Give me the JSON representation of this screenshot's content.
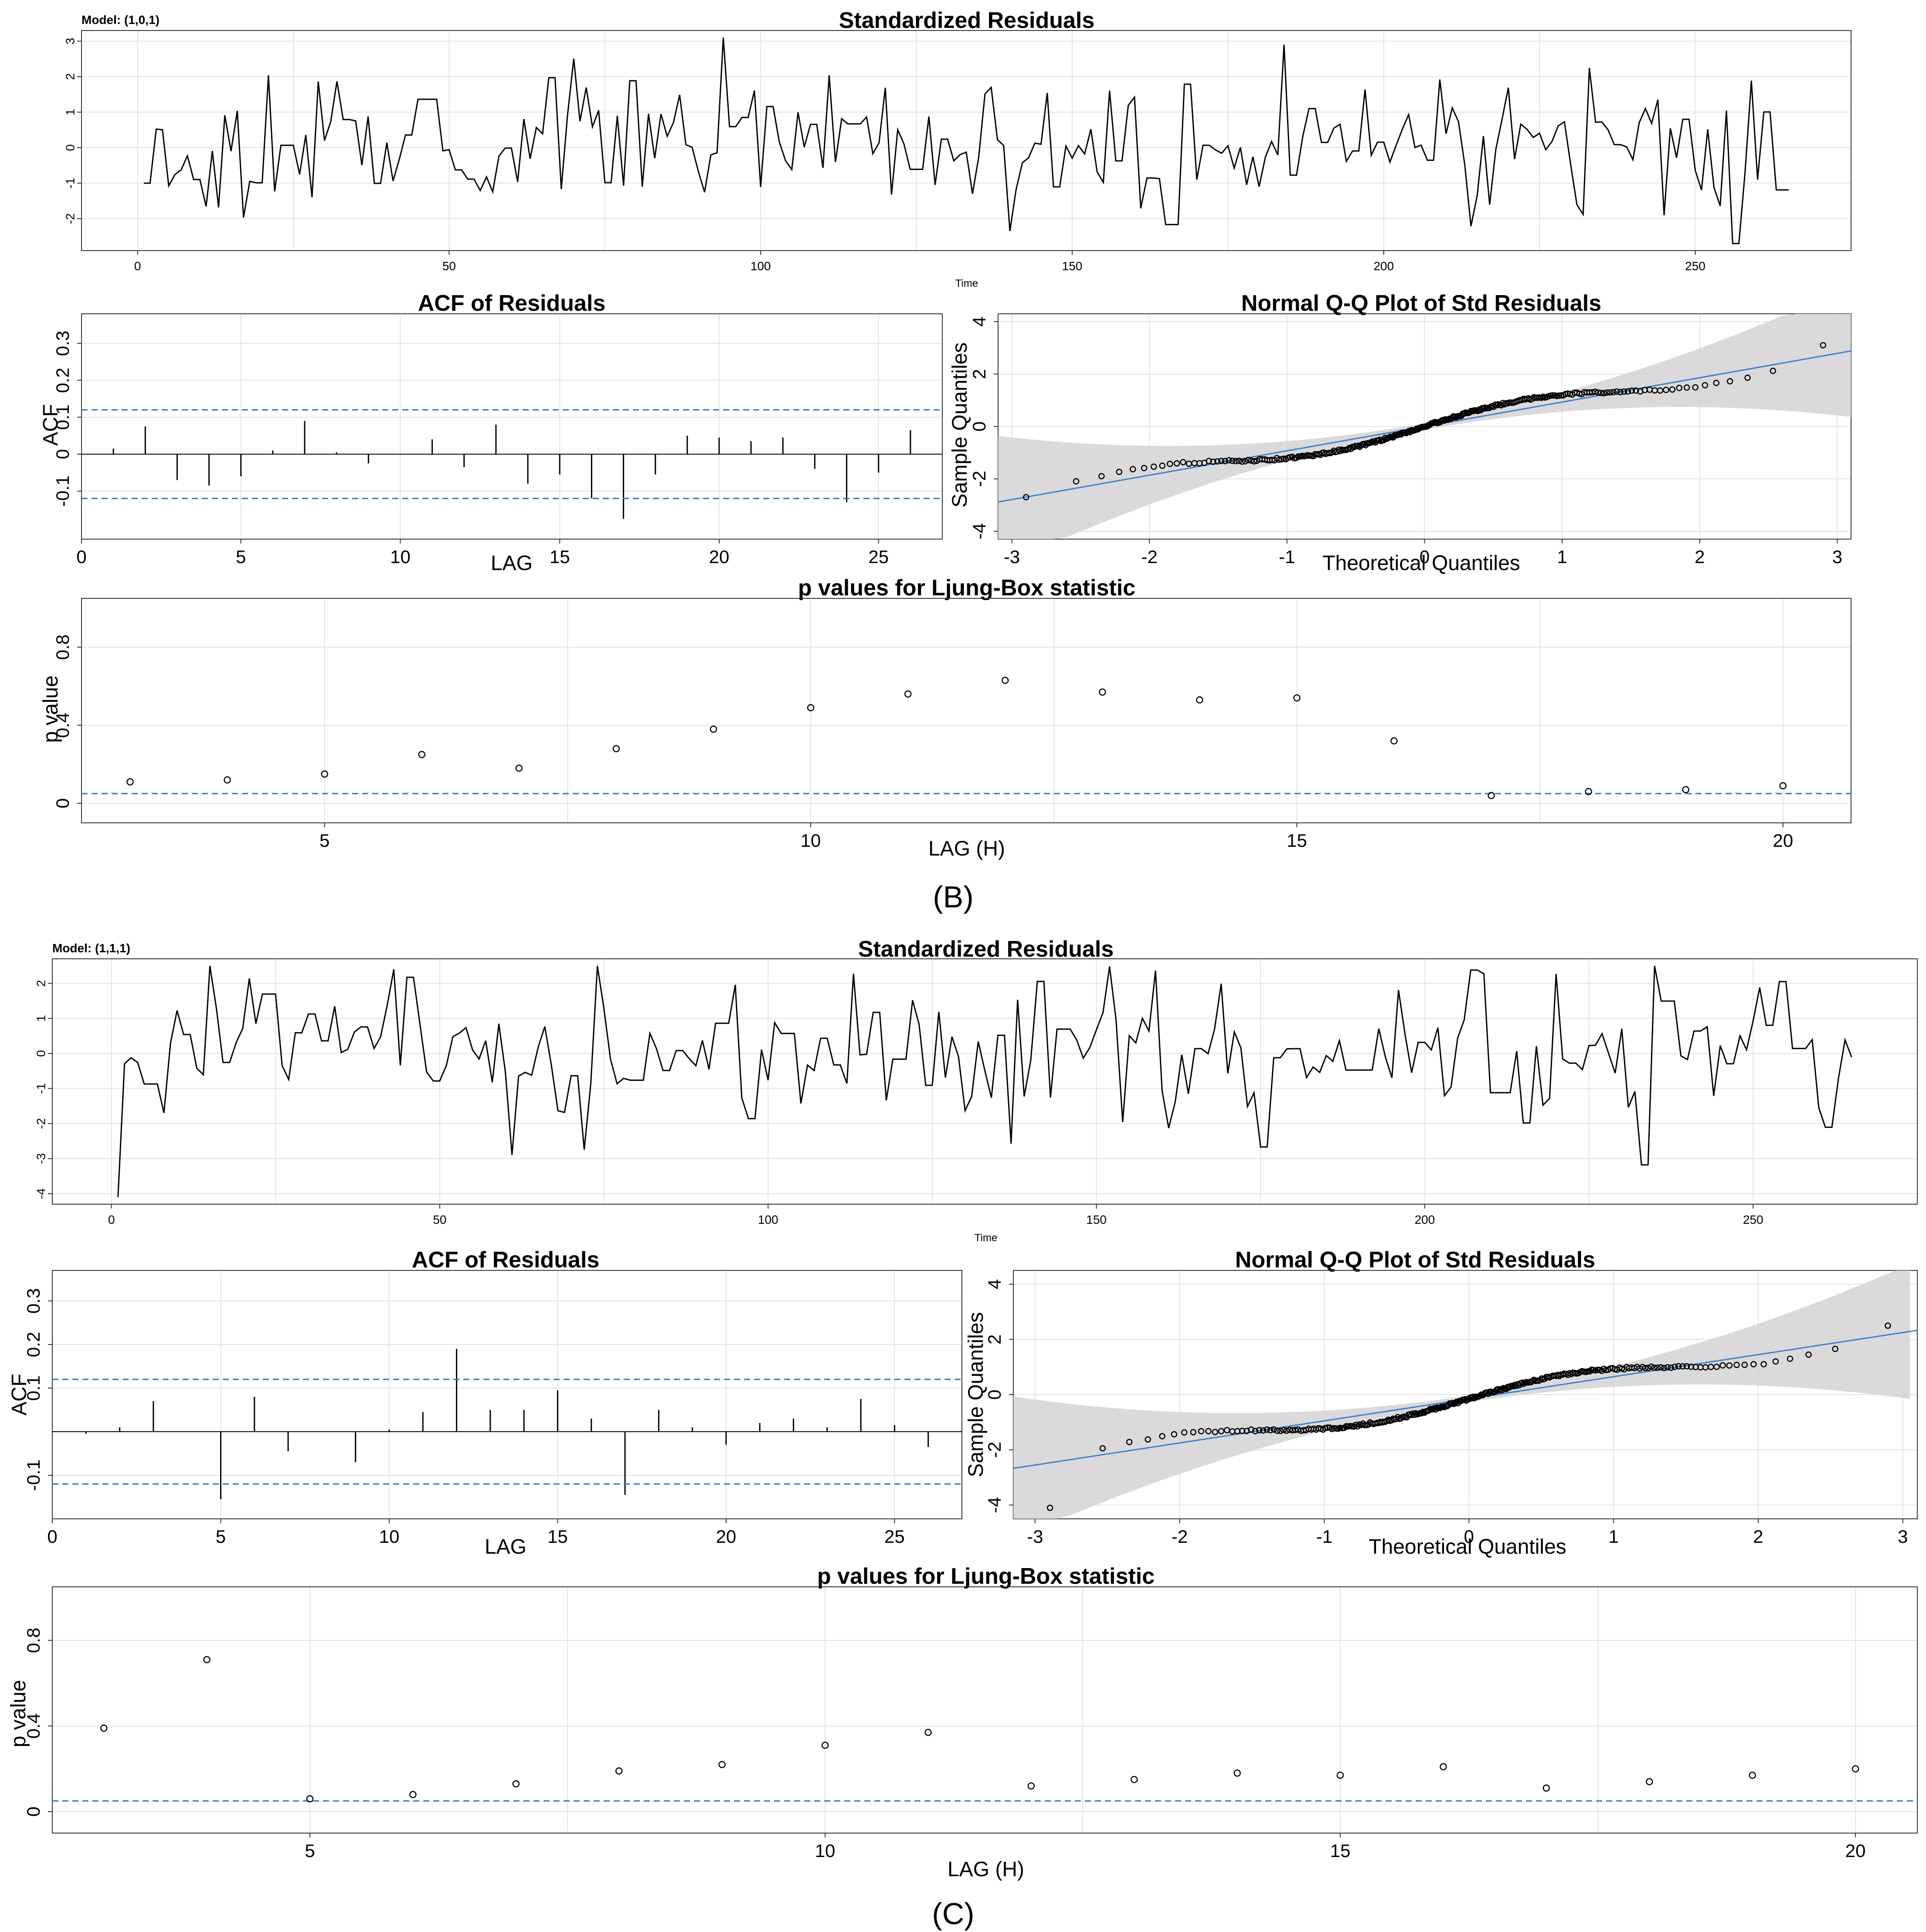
{
  "panels": [
    {
      "id": "B",
      "label": "(B)",
      "model": "Model: (1,0,1)",
      "seed": 11,
      "resid": {
        "title": "Standardized Residuals",
        "xlabel": "Time",
        "xlim": [
          -9,
          275
        ],
        "ylim": [
          -2.9,
          3.3
        ],
        "xticks": [
          0,
          50,
          100,
          150,
          200,
          250
        ],
        "yticks": [
          -2,
          -1,
          0,
          1,
          2,
          3
        ],
        "n": 265
      },
      "acf": {
        "title": "ACF of Residuals",
        "xlabel": "LAG",
        "ylabel": "ACF",
        "xlim": [
          0,
          27
        ],
        "ylim": [
          -0.23,
          0.38
        ],
        "xticks": [
          0,
          5,
          10,
          15,
          20,
          25
        ],
        "yticks": [
          -0.1,
          0.0,
          0.1,
          0.2,
          0.3
        ],
        "ci": 0.12
      },
      "qq": {
        "title": "Normal Q-Q Plot of Std Residuals",
        "xlabel": "Theoretical Quantiles",
        "ylabel": "Sample Quantiles",
        "xlim": [
          -3.1,
          3.1
        ],
        "ylim": [
          -4.3,
          4.3
        ],
        "xticks": [
          -3,
          -2,
          -1,
          0,
          1,
          2,
          3
        ],
        "yticks": [
          -4,
          -2,
          0,
          2,
          4
        ],
        "line": {
          "intercept": 0.0,
          "slope": 0.93
        }
      },
      "lb": {
        "title": "p values for Ljung-Box statistic",
        "xlabel": "LAG (H)",
        "ylabel": "p value",
        "xlim": [
          2.5,
          20.7
        ],
        "ylim": [
          -0.1,
          1.05
        ],
        "xticks": [
          5,
          10,
          15,
          20
        ],
        "yticks": [
          0.0,
          0.4,
          0.8
        ],
        "ci": 0.05
      }
    },
    {
      "id": "C",
      "label": "(C)",
      "model": "Model: (1,1,1)",
      "seed": 29,
      "resid": {
        "title": "Standardized Residuals",
        "xlabel": "Time",
        "xlim": [
          -9,
          275
        ],
        "ylim": [
          -4.3,
          2.7
        ],
        "xticks": [
          0,
          50,
          100,
          150,
          200,
          250
        ],
        "yticks": [
          -4,
          -3,
          -2,
          -1,
          0,
          1,
          2
        ],
        "n": 265
      },
      "acf": {
        "title": "ACF of Residuals",
        "xlabel": "LAG",
        "ylabel": "ACF",
        "xlim": [
          0,
          27
        ],
        "ylim": [
          -0.2,
          0.37
        ],
        "xticks": [
          0,
          5,
          10,
          15,
          20,
          25
        ],
        "yticks": [
          -0.1,
          0.1,
          0.2,
          0.3
        ],
        "ci": 0.12
      },
      "qq": {
        "title": "Normal Q-Q Plot of Std Residuals",
        "xlabel": "Theoretical Quantiles",
        "ylabel": "Sample Quantiles",
        "xlim": [
          -3.15,
          3.1
        ],
        "ylim": [
          -4.5,
          4.5
        ],
        "xticks": [
          -3,
          -2,
          -1,
          0,
          1,
          2,
          3
        ],
        "yticks": [
          -4,
          -2,
          0,
          2,
          4
        ],
        "line": {
          "intercept": -0.15,
          "slope": 0.8
        }
      },
      "lb": {
        "title": "p values for Ljung-Box statistic",
        "xlabel": "LAG (H)",
        "ylabel": "p value",
        "xlim": [
          2.5,
          20.6
        ],
        "ylim": [
          -0.1,
          1.05
        ],
        "xticks": [
          5,
          10,
          15,
          20
        ],
        "yticks": [
          0.0,
          0.4,
          0.8
        ],
        "ci": 0.05
      }
    }
  ],
  "chart_data": [
    {
      "type": "line",
      "title": "Standardized Residuals",
      "subtitle": "Model: (1,0,1)",
      "xlabel": "Time",
      "ylabel": "",
      "xlim": [
        -9,
        275
      ],
      "ylim": [
        -2.9,
        3.3
      ],
      "series": [
        {
          "name": "standardized residuals",
          "x": [
            1,
            265
          ],
          "values": "approximately 265 residual values oscillating between -2.7 and 3.1 (min near t=256, max near t=94)"
        }
      ]
    },
    {
      "type": "bar",
      "title": "ACF of Residuals",
      "subtitle": "Model: (1,0,1)",
      "xlabel": "LAG",
      "ylabel": "ACF",
      "ylim": [
        -0.23,
        0.38
      ],
      "categories": [
        1,
        2,
        3,
        4,
        5,
        6,
        7,
        8,
        9,
        10,
        11,
        12,
        13,
        14,
        15,
        16,
        17,
        18,
        19,
        20,
        21,
        22,
        23,
        24,
        25,
        26
      ],
      "values": [
        0.015,
        0.075,
        -0.07,
        -0.085,
        -0.06,
        0.01,
        0.09,
        0.005,
        -0.025,
        0.0,
        0.04,
        -0.035,
        0.08,
        -0.08,
        -0.055,
        -0.12,
        -0.175,
        -0.055,
        0.05,
        0.045,
        0.035,
        0.045,
        -0.04,
        -0.13,
        -0.05,
        0.065
      ],
      "confidence_band": [
        -0.12,
        0.12
      ]
    },
    {
      "type": "scatter",
      "title": "Normal Q-Q Plot of Std Residuals",
      "subtitle": "Model: (1,0,1)",
      "xlabel": "Theoretical Quantiles",
      "ylabel": "Sample Quantiles",
      "xlim": [
        -3.1,
        3.1
      ],
      "ylim": [
        -4.3,
        4.3
      ],
      "reference_line": {
        "intercept": 0.0,
        "slope": 0.93
      },
      "extremes": {
        "min": [
          -2.9,
          -2.7
        ],
        "max": [
          2.9,
          3.1
        ]
      }
    },
    {
      "type": "scatter",
      "title": "p values for Ljung-Box statistic",
      "subtitle": "Model: (1,0,1)",
      "xlabel": "LAG (H)",
      "ylabel": "p value",
      "ylim": [
        -0.1,
        1.05
      ],
      "x": [
        3,
        4,
        5,
        6,
        7,
        8,
        9,
        10,
        11,
        12,
        13,
        14,
        15,
        16,
        17,
        18,
        19,
        20
      ],
      "values": [
        0.11,
        0.12,
        0.15,
        0.25,
        0.18,
        0.28,
        0.38,
        0.49,
        0.56,
        0.63,
        0.57,
        0.53,
        0.54,
        0.32,
        0.04,
        0.06,
        0.07,
        0.09
      ],
      "reference_line": 0.05
    },
    {
      "type": "line",
      "title": "Standardized Residuals",
      "subtitle": "Model: (1,1,1)",
      "xlabel": "Time",
      "ylabel": "",
      "xlim": [
        -9,
        275
      ],
      "ylim": [
        -4.3,
        2.7
      ],
      "series": [
        {
          "name": "standardized residuals",
          "x": [
            1,
            265
          ],
          "values": "approximately 265 residual values between -4.1 (t=1) and 2.4 (t=43)"
        }
      ]
    },
    {
      "type": "bar",
      "title": "ACF of Residuals",
      "subtitle": "Model: (1,1,1)",
      "xlabel": "LAG",
      "ylabel": "ACF",
      "ylim": [
        -0.2,
        0.37
      ],
      "categories": [
        1,
        2,
        3,
        4,
        5,
        6,
        7,
        8,
        9,
        10,
        11,
        12,
        13,
        14,
        15,
        16,
        17,
        18,
        19,
        20,
        21,
        22,
        23,
        24,
        25,
        26
      ],
      "values": [
        -0.005,
        0.01,
        0.07,
        0.0,
        -0.155,
        0.08,
        -0.045,
        0.0,
        -0.07,
        0.005,
        0.045,
        0.19,
        0.05,
        0.05,
        0.095,
        0.03,
        -0.145,
        0.05,
        0.01,
        -0.03,
        0.02,
        0.03,
        0.01,
        0.075,
        0.015,
        -0.035
      ],
      "confidence_band": [
        -0.12,
        0.12
      ]
    },
    {
      "type": "scatter",
      "title": "Normal Q-Q Plot of Std Residuals",
      "subtitle": "Model: (1,1,1)",
      "xlabel": "Theoretical Quantiles",
      "ylabel": "Sample Quantiles",
      "xlim": [
        -3.15,
        3.1
      ],
      "ylim": [
        -4.5,
        4.5
      ],
      "reference_line": {
        "intercept": -0.15,
        "slope": 0.8
      },
      "extremes": {
        "min": [
          -2.85,
          -4.1
        ],
        "max": [
          2.9,
          2.5
        ]
      }
    },
    {
      "type": "scatter",
      "title": "p values for Ljung-Box statistic",
      "subtitle": "Model: (1,1,1)",
      "xlabel": "LAG (H)",
      "ylabel": "p value",
      "ylim": [
        -0.1,
        1.05
      ],
      "x": [
        3,
        4,
        5,
        6,
        7,
        8,
        9,
        10,
        11,
        12,
        13,
        14,
        15,
        16,
        17,
        18,
        19,
        20
      ],
      "values": [
        0.39,
        0.71,
        0.06,
        0.08,
        0.13,
        0.19,
        0.22,
        0.31,
        0.37,
        0.12,
        0.15,
        0.18,
        0.17,
        0.21,
        0.11,
        0.14,
        0.17,
        0.2
      ],
      "reference_line": 0.05
    }
  ]
}
